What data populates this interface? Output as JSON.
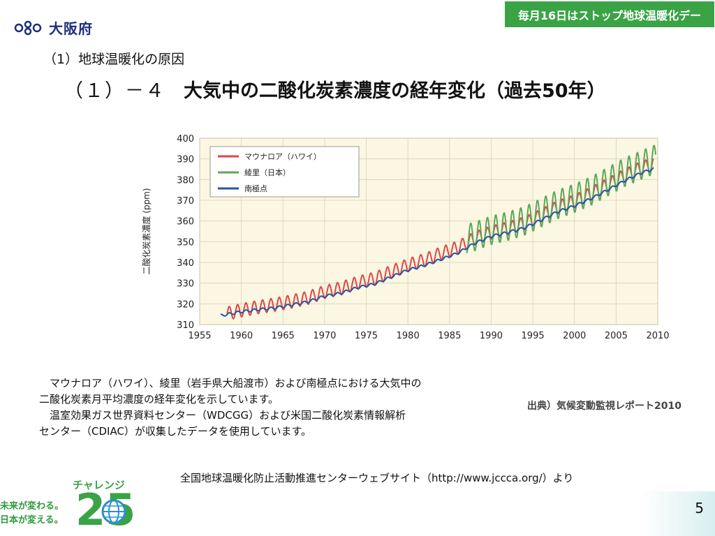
{
  "header": {
    "logo_text": "大阪府",
    "banner_text": "毎月16日はストップ地球温暖化デー",
    "subtitle": "（1）地球温暖化の原因",
    "title_number": "（１）－４",
    "title_text": "大気中の二酸化炭素濃度の経年変化（過去50年）"
  },
  "chart_data": {
    "type": "line",
    "title": "",
    "xlabel": "",
    "ylabel": "二酸化炭素濃度 (ppm)",
    "xlim": [
      1955,
      2010
    ],
    "ylim": [
      310,
      400
    ],
    "xticks": [
      1955,
      1960,
      1965,
      1970,
      1975,
      1980,
      1985,
      1990,
      1995,
      2000,
      2005,
      2010
    ],
    "yticks": [
      310,
      320,
      330,
      340,
      350,
      360,
      370,
      380,
      390,
      400
    ],
    "grid": true,
    "legend_position": "top-left",
    "background": "#fbf7e2",
    "series": [
      {
        "name": "マウナロア（ハワイ）",
        "color": "#e04545",
        "x": [
          1958.3,
          1960,
          1962,
          1964,
          1966,
          1968,
          1970,
          1972,
          1974,
          1976,
          1978,
          1980,
          1982,
          1984,
          1986,
          1988,
          1990,
          1992,
          1994,
          1996,
          1998,
          2000,
          2002,
          2004,
          2006,
          2008,
          2009.5
        ],
        "y": [
          315.3,
          316.9,
          318.4,
          319.6,
          321.1,
          322.9,
          325.7,
          327.5,
          330.2,
          332.1,
          335.4,
          338.7,
          341.1,
          344.4,
          347.2,
          351.6,
          354.4,
          356.4,
          358.8,
          362.6,
          366.7,
          369.5,
          373.2,
          377.5,
          381.9,
          385.6,
          387.4
        ],
        "amplitude": 3.2
      },
      {
        "name": "綾里（日本）",
        "color": "#5aa75a",
        "x": [
          1987,
          1988,
          1990,
          1992,
          1994,
          1996,
          1998,
          2000,
          2002,
          2004,
          2006,
          2008,
          2009.8
        ],
        "y": [
          351.5,
          352.5,
          355.5,
          357.5,
          360.0,
          364.0,
          368.0,
          371.0,
          374.5,
          379.0,
          383.5,
          387.0,
          390.0
        ],
        "amplitude": 7.0
      },
      {
        "name": "南極点",
        "color": "#2456a8",
        "x": [
          1957.5,
          1960,
          1962,
          1964,
          1966,
          1968,
          1970,
          1972,
          1974,
          1976,
          1978,
          1980,
          1982,
          1984,
          1986,
          1988,
          1990,
          1992,
          1994,
          1996,
          1998,
          2000,
          2002,
          2004,
          2006,
          2008,
          2009.5
        ],
        "y": [
          314.3,
          316.2,
          317.2,
          318.0,
          319.5,
          321.0,
          323.7,
          325.2,
          327.9,
          329.6,
          333.0,
          336.3,
          338.6,
          341.5,
          344.5,
          349.2,
          352.6,
          354.5,
          356.7,
          360.5,
          364.5,
          367.3,
          370.8,
          375.0,
          379.4,
          383.2,
          385.2
        ],
        "amplitude": 0.6
      }
    ]
  },
  "description": {
    "line1": "　マウナロア（ハワイ）、綾里（岩手県大船渡市）および南極点における大気中の",
    "line2": "二酸化炭素月平均濃度の経年変化を示しています。",
    "line3": "　温室効果ガス世界資料センター（WDCGG）および米国二酸化炭素情報解析",
    "line4": "センター（CDIAC）が収集したデータを使用しています。"
  },
  "source": "出典）気候変動監視レポート2010",
  "footer_text": "全国地球温暖化防止活動推進センターウェブサイト（http://www.jccca.org/）より",
  "challenge": {
    "label": "チャレンジ",
    "number": "25",
    "slogan_line1": "未来が変わる。",
    "slogan_line2": "日本が変える。"
  },
  "page_number": "5"
}
